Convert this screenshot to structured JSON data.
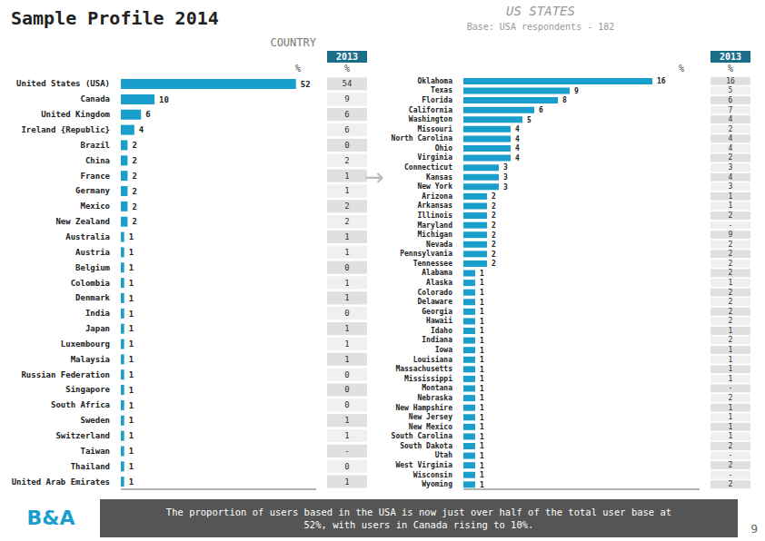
{
  "chart_data": [
    {
      "type": "bar",
      "title": "Sample Profile 2014",
      "subtitle": "COUNTRY",
      "xlabel": "%",
      "orientation": "horizontal",
      "color": "#1a9fcc",
      "xlim": [
        0,
        58
      ],
      "data_labels": true,
      "tick_labels": "y",
      "grid": false,
      "categories": [
        "United States (USA)",
        "Canada",
        "United Kingdom",
        "Ireland {Republic}",
        "Brazil",
        "China",
        "France",
        "Germany",
        "Mexico",
        "New Zealand",
        "Australia",
        "Austria",
        "Belgium",
        "Colombia",
        "Denmark",
        "India",
        "Japan",
        "Luxembourg",
        "Malaysia",
        "Russian Federation",
        "Singapore",
        "South Africa",
        "Sweden",
        "Switzerland",
        "Taiwan",
        "Thailand",
        "United Arab Emirates"
      ],
      "values": [
        52,
        10,
        6,
        4,
        2,
        2,
        2,
        2,
        2,
        2,
        1,
        1,
        1,
        1,
        1,
        1,
        1,
        1,
        1,
        1,
        1,
        1,
        1,
        1,
        1,
        1,
        1
      ],
      "comparison": {
        "name": "2013",
        "values": [
          54,
          9,
          6,
          6,
          0,
          2,
          1,
          1,
          2,
          2,
          1,
          1,
          0,
          1,
          1,
          0,
          1,
          1,
          1,
          0,
          0,
          0,
          1,
          1,
          null,
          0,
          1
        ],
        "value_labels": [
          "54",
          "9",
          "6",
          "6",
          "0",
          "2",
          "1",
          "1",
          "2",
          "2",
          "1",
          "1",
          "0",
          "1",
          "1",
          "0",
          "1",
          "1",
          "1",
          "0",
          "0",
          "0",
          "1",
          "1",
          "-",
          "0",
          "1"
        ]
      },
      "annotations": [
        "→",
        "The proportion of users based in the USA is now just over half of the total user base at\n52%, with users in Canada rising to 10%.",
        "9",
        "B&A"
      ]
    },
    {
      "type": "bar",
      "title": "US STATES",
      "subtitle": "Base: USA respondents - 182",
      "xlabel": "%",
      "orientation": "horizontal",
      "color": "#1a9fcc",
      "xlim": [
        0,
        20
      ],
      "data_labels": true,
      "tick_labels": "y",
      "grid": false,
      "categories": [
        "Oklahoma",
        "Texas",
        "Florida",
        "California",
        "Washington",
        "Missouri",
        "North Carolina",
        "Ohio",
        "Virginia",
        "Connecticut",
        "Kansas",
        "New York",
        "Arizona",
        "Arkansas",
        "Illinois",
        "Maryland",
        "Michigan",
        "Nevada",
        "Pennsylvania",
        "Tennessee",
        "Alabama",
        "Alaska",
        "Colorado",
        "Delaware",
        "Georgia",
        "Hawaii",
        "Idaho",
        "Indiana",
        "Iowa",
        "Louisiana",
        "Massachusetts",
        "Mississippi",
        "Montana",
        "Nebraska",
        "New Hampshire",
        "New Jersey",
        "New Mexico",
        "South Carolina",
        "South Dakota",
        "Utah",
        "West Virginia",
        "Wisconsin",
        "Wyoming"
      ],
      "values": [
        16,
        9,
        8,
        6,
        5,
        4,
        4,
        4,
        4,
        3,
        3,
        3,
        2,
        2,
        2,
        2,
        2,
        2,
        2,
        2,
        1,
        1,
        1,
        1,
        1,
        1,
        1,
        1,
        1,
        1,
        1,
        1,
        1,
        1,
        1,
        1,
        1,
        1,
        1,
        1,
        1,
        1,
        1
      ],
      "comparison": {
        "name": "2013",
        "values": [
          16,
          5,
          6,
          7,
          4,
          2,
          4,
          4,
          2,
          3,
          4,
          3,
          1,
          1,
          2,
          null,
          9,
          2,
          2,
          2,
          2,
          1,
          2,
          2,
          2,
          2,
          1,
          2,
          1,
          1,
          1,
          1,
          null,
          2,
          1,
          1,
          1,
          1,
          2,
          null,
          2,
          null,
          2
        ],
        "value_labels": [
          "16",
          "5",
          "6",
          "7",
          "4",
          "2",
          "4",
          "4",
          "2",
          "3",
          "4",
          "3",
          "1",
          "1",
          "2",
          "-",
          "9",
          "2",
          "2",
          "2",
          "2",
          "1",
          "2",
          "2",
          "2",
          "2",
          "1",
          "2",
          "1",
          "1",
          "1",
          "1",
          "-",
          "2",
          "1",
          "1",
          "1",
          "1",
          "2",
          "-",
          "2",
          "-",
          "2"
        ]
      }
    }
  ]
}
